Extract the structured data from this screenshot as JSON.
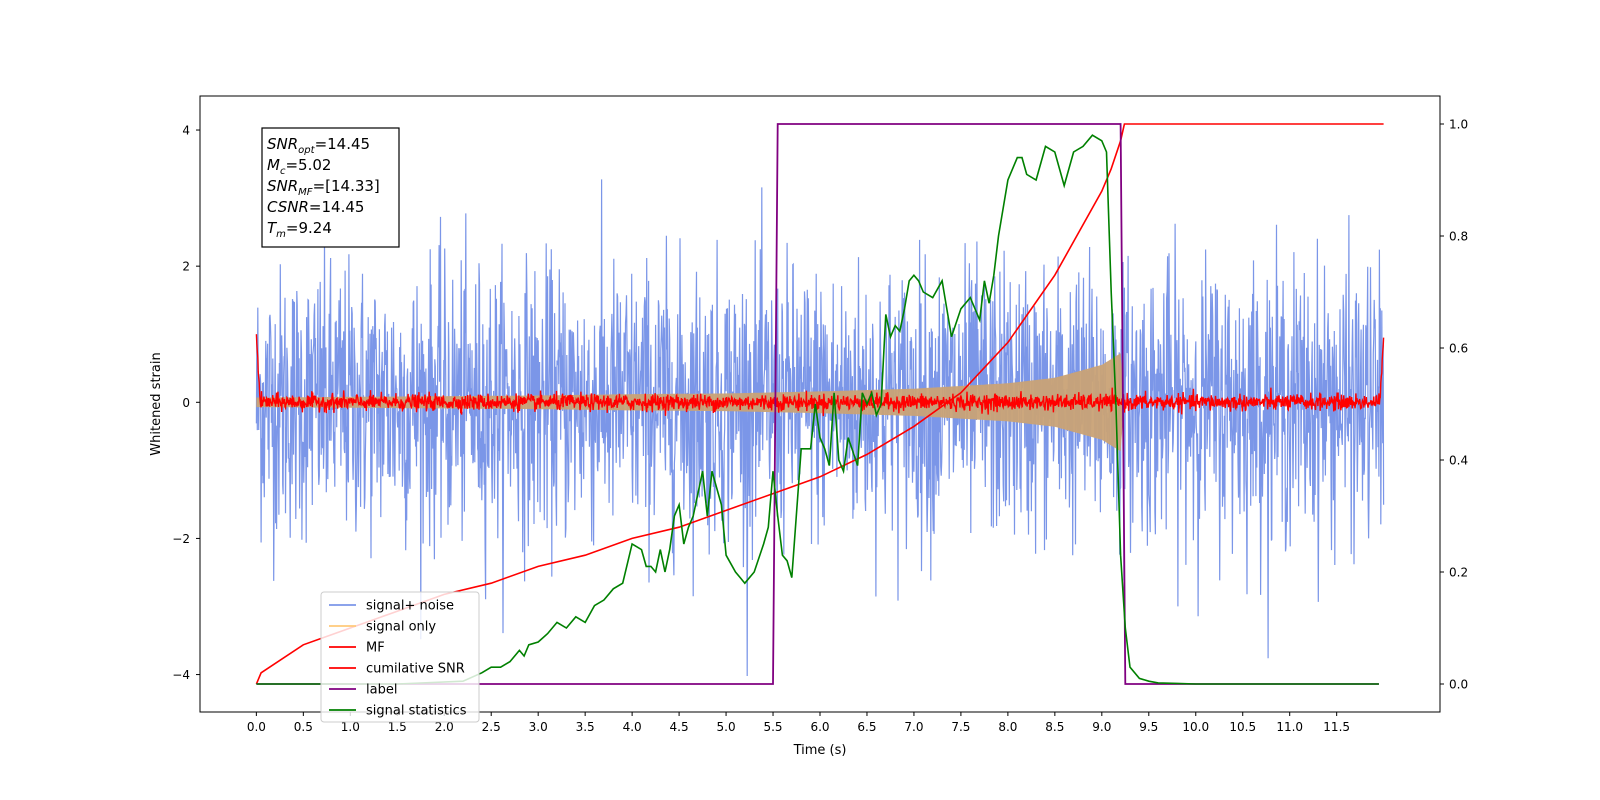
{
  "chart_data": {
    "type": "line",
    "xlabel": "Time (s)",
    "ylabel": "Whitened strain",
    "xlim": [
      -0.6,
      12.6
    ],
    "ylim_left": [
      -4.55,
      4.5
    ],
    "ylim_right": [
      -0.05,
      1.05
    ],
    "x_ticks": [
      0.0,
      0.5,
      1.0,
      1.5,
      2.0,
      2.5,
      3.0,
      3.5,
      4.0,
      4.5,
      5.0,
      5.5,
      6.0,
      6.5,
      7.0,
      7.5,
      8.0,
      8.5,
      9.0,
      9.5,
      10.0,
      10.5,
      11.0,
      11.5
    ],
    "x_tick_labels": [
      "0.0",
      "0.5",
      "1.0",
      "1.5",
      "2.0",
      "2.5",
      "3.0",
      "3.5",
      "4.0",
      "4.5",
      "5.0",
      "5.5",
      "6.0",
      "6.5",
      "7.0",
      "7.5",
      "8.0",
      "8.5",
      "9.0",
      "9.5",
      "10.0",
      "10.5",
      "11.0",
      "11.5"
    ],
    "y_ticks_left": [
      -4,
      -2,
      0,
      2,
      4
    ],
    "y_tick_labels_left": [
      "−4",
      "−2",
      "0",
      "2",
      "4"
    ],
    "y_ticks_right": [
      0.0,
      0.2,
      0.4,
      0.6,
      0.8,
      1.0
    ],
    "y_tick_labels_right": [
      "0.0",
      "0.2",
      "0.4",
      "0.6",
      "0.8",
      "1.0"
    ],
    "legend_position": "lower-left",
    "grid": false,
    "annotation_lines": [
      {
        "base": "SNR",
        "sub": "opt",
        "value": "=14.45"
      },
      {
        "base": "M",
        "sub": "c",
        "value": "=5.02"
      },
      {
        "base": "SNR",
        "sub": "MF",
        "value": "=[14.33]"
      },
      {
        "base": "CSNR",
        "sub": "",
        "value": "=14.45"
      },
      {
        "base": "T",
        "sub": "m",
        "value": "=9.24"
      }
    ],
    "series": [
      {
        "name": "signal+ noise",
        "color": "#7b96e8",
        "axis": "left",
        "kind": "noise",
        "x_range": [
          0,
          12
        ],
        "sigma": 1.0,
        "sample_spacing": 0.005
      },
      {
        "name": "signal only",
        "color": "#c9a276",
        "axis": "left",
        "kind": "envelope",
        "x": [
          0,
          1,
          2,
          3,
          4,
          5,
          6,
          7,
          8,
          8.5,
          9,
          9.2,
          9.24
        ],
        "values": [
          0.07,
          0.08,
          0.09,
          0.1,
          0.12,
          0.13,
          0.16,
          0.2,
          0.28,
          0.36,
          0.55,
          0.72,
          0.0
        ]
      },
      {
        "name": "MF",
        "color": "#ff0000",
        "axis": "left",
        "kind": "noise",
        "x_range": [
          0,
          12
        ],
        "sigma": 0.06,
        "edge_values": [
          1.0,
          0.95
        ]
      },
      {
        "name": "cumilative SNR",
        "color": "#ff0000",
        "axis": "right",
        "x": [
          0,
          0.05,
          0.5,
          1.0,
          1.5,
          2.0,
          2.5,
          3.0,
          3.5,
          4.0,
          4.5,
          5.0,
          5.5,
          6.0,
          6.5,
          7.0,
          7.5,
          8.0,
          8.5,
          9.0,
          9.1,
          9.2,
          9.24,
          12.0
        ],
        "values": [
          0.0,
          0.02,
          0.07,
          0.1,
          0.13,
          0.16,
          0.18,
          0.21,
          0.23,
          0.26,
          0.28,
          0.31,
          0.34,
          0.37,
          0.41,
          0.46,
          0.52,
          0.61,
          0.73,
          0.88,
          0.92,
          0.97,
          1.0,
          1.0
        ]
      },
      {
        "name": "label",
        "color": "#800080",
        "axis": "right",
        "x": [
          0,
          5.5,
          5.55,
          9.2,
          9.25,
          11.95
        ],
        "values": [
          0,
          0,
          1,
          1,
          0,
          0
        ]
      },
      {
        "name": "signal statistics",
        "color": "#008000",
        "axis": "right",
        "x": [
          0,
          1.5,
          2.2,
          2.4,
          2.5,
          2.6,
          2.7,
          2.8,
          2.85,
          2.9,
          3.0,
          3.1,
          3.2,
          3.3,
          3.4,
          3.5,
          3.6,
          3.7,
          3.8,
          3.9,
          4.0,
          4.1,
          4.15,
          4.2,
          4.25,
          4.3,
          4.35,
          4.4,
          4.45,
          4.5,
          4.55,
          4.6,
          4.65,
          4.7,
          4.75,
          4.8,
          4.85,
          4.9,
          4.95,
          5.0,
          5.1,
          5.15,
          5.2,
          5.3,
          5.4,
          5.45,
          5.5,
          5.55,
          5.6,
          5.65,
          5.7,
          5.8,
          5.9,
          5.95,
          6.0,
          6.05,
          6.1,
          6.15,
          6.2,
          6.25,
          6.3,
          6.4,
          6.45,
          6.5,
          6.55,
          6.6,
          6.65,
          6.7,
          6.75,
          6.8,
          6.85,
          6.9,
          6.95,
          7.0,
          7.05,
          7.1,
          7.2,
          7.3,
          7.4,
          7.5,
          7.6,
          7.7,
          7.75,
          7.8,
          7.85,
          7.9,
          8.0,
          8.1,
          8.15,
          8.2,
          8.3,
          8.4,
          8.5,
          8.6,
          8.7,
          8.8,
          8.9,
          9.0,
          9.05,
          9.1,
          9.15,
          9.2,
          9.25,
          9.3,
          9.4,
          9.5,
          9.6,
          9.8,
          10.0,
          11.95
        ],
        "values": [
          0.0,
          0.0,
          0.005,
          0.02,
          0.03,
          0.03,
          0.04,
          0.06,
          0.05,
          0.07,
          0.075,
          0.09,
          0.11,
          0.1,
          0.12,
          0.11,
          0.14,
          0.15,
          0.17,
          0.18,
          0.25,
          0.24,
          0.21,
          0.21,
          0.2,
          0.24,
          0.2,
          0.24,
          0.3,
          0.32,
          0.25,
          0.28,
          0.3,
          0.34,
          0.38,
          0.3,
          0.38,
          0.35,
          0.32,
          0.23,
          0.2,
          0.19,
          0.18,
          0.2,
          0.25,
          0.28,
          0.38,
          0.3,
          0.23,
          0.22,
          0.19,
          0.42,
          0.42,
          0.5,
          0.44,
          0.42,
          0.39,
          0.52,
          0.4,
          0.38,
          0.44,
          0.39,
          0.52,
          0.5,
          0.52,
          0.48,
          0.5,
          0.66,
          0.62,
          0.64,
          0.63,
          0.67,
          0.72,
          0.73,
          0.72,
          0.7,
          0.69,
          0.72,
          0.62,
          0.67,
          0.69,
          0.65,
          0.72,
          0.68,
          0.73,
          0.8,
          0.9,
          0.94,
          0.94,
          0.91,
          0.9,
          0.96,
          0.95,
          0.89,
          0.95,
          0.96,
          0.98,
          0.97,
          0.95,
          0.7,
          0.5,
          0.23,
          0.1,
          0.03,
          0.01,
          0.005,
          0.002,
          0.001,
          0.0,
          0.0
        ]
      }
    ]
  }
}
